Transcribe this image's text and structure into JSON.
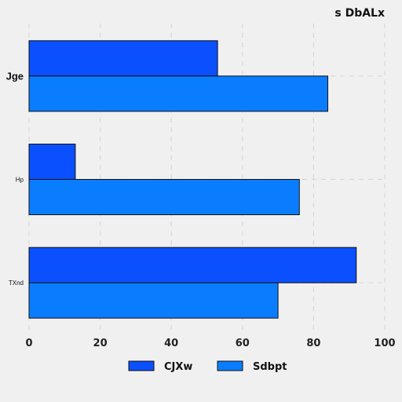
{
  "chart_data": {
    "type": "bar",
    "orientation": "horizontal",
    "title": "s DbALx",
    "categories": [
      "Jge",
      "Hp",
      "TXnd"
    ],
    "series": [
      {
        "name": "CJXw",
        "values": [
          53,
          13,
          92
        ],
        "color": "#0a50ff"
      },
      {
        "name": "Sdbpt",
        "values": [
          84,
          76,
          70
        ],
        "color": "#0a7dff"
      }
    ],
    "xlim": [
      0,
      100
    ],
    "xticks": [
      0,
      20,
      40,
      60,
      80,
      100
    ],
    "grid": true,
    "legend_position": "bottom"
  }
}
